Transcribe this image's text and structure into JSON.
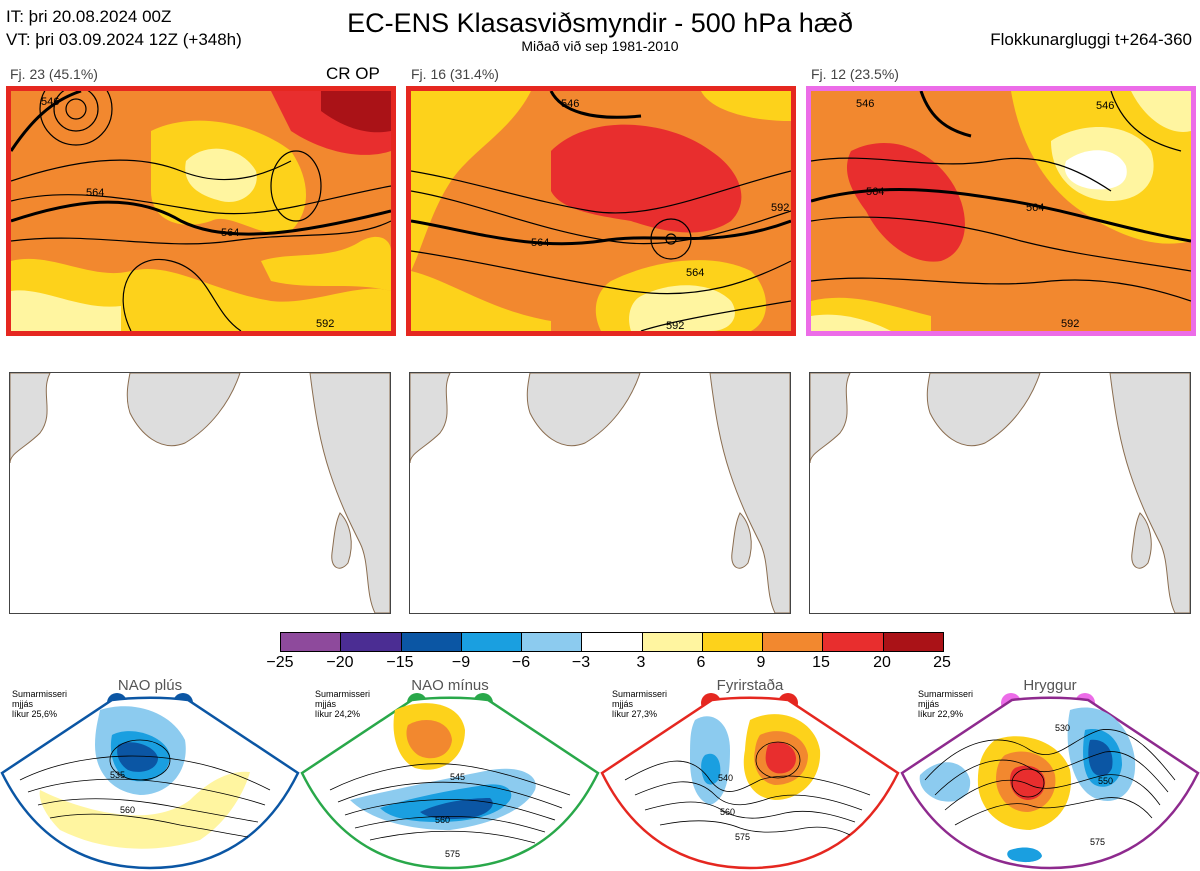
{
  "header": {
    "init_time": "IT: þri 20.08.2024 00Z",
    "valid_time": "VT: þri 03.09.2024 12Z  (+348h)",
    "title": "EC-ENS Klasasviðsmyndir - 500 hPa hæð",
    "subtitle": "Miðað við sep 1981-2010",
    "window": "Flokkunargluggi t+264-360"
  },
  "clusters": [
    {
      "label": "Fj. 23 (45.1%)",
      "border_color": "#e52720",
      "tag": "CR OP",
      "contours": [
        "546",
        "564",
        "564",
        "592"
      ]
    },
    {
      "label": "Fj. 16 (31.4%)",
      "border_color": "#e52720",
      "tag": "",
      "contours": [
        "546",
        "564",
        "564",
        "592",
        "592"
      ]
    },
    {
      "label": "Fj. 12 (23.5%)",
      "border_color": "#ec6ce8",
      "tag": "",
      "contours": [
        "546",
        "546",
        "564",
        "564",
        "592"
      ]
    }
  ],
  "colorbar": {
    "ticks": [
      "−25",
      "−20",
      "−15",
      "−9",
      "−6",
      "−3",
      "3",
      "6",
      "9",
      "15",
      "20",
      "25"
    ],
    "colors": [
      "#8e4a9c",
      "#4b2d93",
      "#0b56a4",
      "#1a9fe0",
      "#8ccbef",
      "#ffffff",
      "#fff5a0",
      "#fdd21b",
      "#f2882f",
      "#e82e2e",
      "#aa1217"
    ]
  },
  "regimes": [
    {
      "name": "NAO plús",
      "season": "Sumarmisseri",
      "word": "mjjás",
      "likelihood": "líkur 25,6%",
      "color": "#0b56a4",
      "contours": [
        "535",
        "560"
      ]
    },
    {
      "name": "NAO mínus",
      "season": "Sumarmisseri",
      "word": "mjjás",
      "likelihood": "líkur 24,2%",
      "color": "#29a84a",
      "contours": [
        "545",
        "560",
        "575"
      ]
    },
    {
      "name": "Fyrirstaða",
      "season": "Sumarmisseri",
      "word": "mjjás",
      "likelihood": "líkur 27,3%",
      "color": "#e52720",
      "contours": [
        "540",
        "560",
        "575"
      ]
    },
    {
      "name": "Hryggur",
      "season": "Sumarmisseri",
      "word": "mjjás",
      "likelihood": "líkur 22,9%",
      "color": "#8e2a8e",
      "contours": [
        "530",
        "550",
        "575"
      ]
    }
  ]
}
